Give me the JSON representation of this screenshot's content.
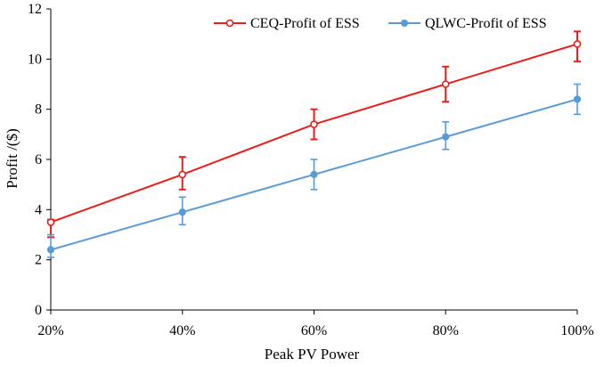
{
  "chart_data": {
    "type": "line",
    "title": "",
    "xlabel": "Peak PV Power",
    "ylabel": "Profit /($)",
    "categories": [
      "20%",
      "40%",
      "60%",
      "80%",
      "100%"
    ],
    "ylim": [
      0,
      12
    ],
    "yticks": [
      "0",
      "2",
      "4",
      "6",
      "8",
      "10",
      "12"
    ],
    "grid": false,
    "legend_position": "top-right",
    "series": [
      {
        "name": "CEQ-Profit of ESS",
        "color": "#e8201a",
        "values": [
          3.5,
          5.4,
          7.4,
          9.0,
          10.6
        ],
        "error_low": [
          2.9,
          4.8,
          6.8,
          8.3,
          9.9
        ],
        "error_high": [
          3.6,
          6.1,
          8.0,
          9.7,
          11.1
        ]
      },
      {
        "name": "QLWC-Profit of ESS",
        "color": "#5b9bd5",
        "values": [
          2.4,
          3.9,
          5.4,
          6.9,
          8.4
        ],
        "error_low": [
          2.1,
          3.4,
          4.8,
          6.4,
          7.8
        ],
        "error_high": [
          3.0,
          4.5,
          6.0,
          7.5,
          9.0
        ]
      }
    ]
  }
}
